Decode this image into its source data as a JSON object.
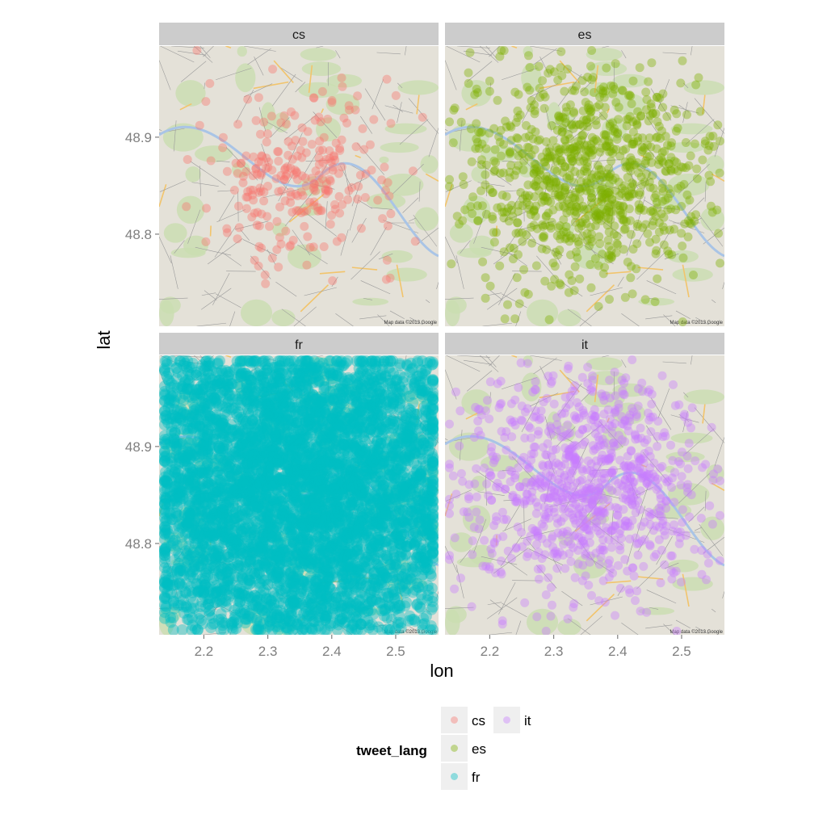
{
  "chart_data": {
    "type": "scatter",
    "facet_by": "tweet_lang",
    "facets": [
      "cs",
      "es",
      "fr",
      "it"
    ],
    "xlabel": "lon",
    "ylabel": "lat",
    "xlim": [
      2.13,
      2.567
    ],
    "ylim": [
      48.705,
      48.994
    ],
    "xticks": [
      2.2,
      2.3,
      2.4,
      2.5
    ],
    "xtick_labels": [
      "2.2",
      "2.3",
      "2.4",
      "2.5"
    ],
    "yticks": [
      48.8,
      48.9
    ],
    "ytick_labels": [
      "48.8",
      "48.9"
    ],
    "background": "Google road map of Paris region",
    "map_attribution": "Map data ©2013 Google",
    "grid": false,
    "point_alpha": 0.4,
    "series": [
      {
        "name": "cs",
        "color": "#F8766D",
        "center": [
          2.35,
          48.86
        ],
        "density": "sparse"
      },
      {
        "name": "es",
        "color": "#7CAE00",
        "center": [
          2.35,
          48.86
        ],
        "density": "medium"
      },
      {
        "name": "fr",
        "color": "#00BFC4",
        "center": [
          2.35,
          48.86
        ],
        "density": "very dense"
      },
      {
        "name": "it",
        "color": "#C77CFF",
        "center": [
          2.35,
          48.86
        ],
        "density": "medium"
      }
    ],
    "legend": {
      "title": "tweet_lang",
      "position": "bottom",
      "entries": [
        "cs",
        "es",
        "fr",
        "it"
      ]
    }
  }
}
